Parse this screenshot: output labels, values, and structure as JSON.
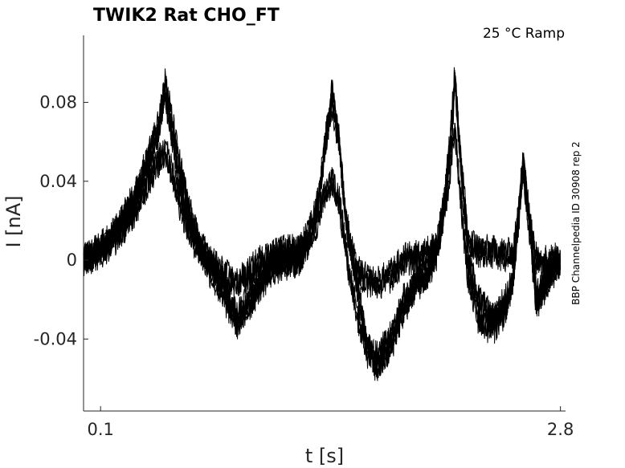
{
  "chart_data": {
    "type": "line",
    "title": "TWIK2  Rat  CHO_FT",
    "annotation": "25 °C  Ramp",
    "side_label": "BBP Channelpedia ID 30908 rep 2",
    "xlabel": "t [s]",
    "ylabel": "I [nA]",
    "xlim": [
      0.0,
      2.83
    ],
    "ylim": [
      -0.0765,
      0.114
    ],
    "x_ticks": [
      {
        "value": 0.1,
        "label": "0.1"
      },
      {
        "value": 2.8,
        "label": "2.8"
      }
    ],
    "y_ticks": [
      {
        "value": 0.08,
        "label": "0.08"
      },
      {
        "value": 0.04,
        "label": "0.04"
      },
      {
        "value": 0,
        "label": "0"
      },
      {
        "value": -0.04,
        "label": "-0.04"
      }
    ],
    "grid": false,
    "legend": "none",
    "series_color": "#000000",
    "series": [
      {
        "x": [
          0.0,
          0.1,
          0.2,
          0.3,
          0.38,
          0.44,
          0.48,
          0.52,
          0.56,
          0.62,
          0.68,
          0.74,
          0.8,
          0.86,
          0.9,
          0.96,
          1.04,
          1.12,
          1.2,
          1.26,
          1.32,
          1.38,
          1.42,
          1.46,
          1.5,
          1.54,
          1.6,
          1.66,
          1.72,
          1.8,
          1.88,
          1.96,
          2.02,
          2.08,
          2.12,
          2.16,
          2.18,
          2.22,
          2.26,
          2.32,
          2.4,
          2.48,
          2.52,
          2.55,
          2.58,
          2.62,
          2.66,
          2.7,
          2.75,
          2.8
        ],
        "y": [
          0.0,
          0.005,
          0.015,
          0.03,
          0.05,
          0.065,
          0.085,
          0.06,
          0.04,
          0.02,
          0.008,
          0.0,
          -0.01,
          -0.02,
          -0.03,
          -0.02,
          -0.01,
          0.0,
          0.0,
          0.0,
          0.01,
          0.03,
          0.06,
          0.085,
          0.06,
          0.02,
          -0.01,
          -0.04,
          -0.05,
          -0.04,
          -0.02,
          -0.01,
          -0.005,
          0.01,
          0.03,
          0.07,
          0.095,
          0.04,
          0.0,
          -0.02,
          -0.03,
          -0.02,
          -0.01,
          0.02,
          0.05,
          0.02,
          -0.02,
          -0.01,
          -0.005,
          0.0
        ]
      },
      {
        "x": [
          0.0,
          0.1,
          0.2,
          0.3,
          0.38,
          0.44,
          0.48,
          0.52,
          0.56,
          0.62,
          0.68,
          0.74,
          0.8,
          0.86,
          0.9,
          0.96,
          1.04,
          1.12,
          1.2,
          1.26,
          1.32,
          1.38,
          1.42,
          1.46,
          1.5,
          1.54,
          1.6,
          1.66,
          1.72,
          1.8,
          1.88,
          1.96,
          2.02,
          2.08,
          2.12,
          2.16,
          2.18,
          2.22,
          2.26,
          2.32,
          2.4,
          2.48,
          2.52,
          2.55,
          2.58,
          2.62,
          2.66,
          2.7,
          2.75,
          2.8
        ],
        "y": [
          0.0,
          0.006,
          0.016,
          0.032,
          0.052,
          0.07,
          0.09,
          0.07,
          0.05,
          0.025,
          0.008,
          0.0,
          -0.005,
          -0.01,
          -0.012,
          -0.008,
          0.0,
          0.003,
          0.005,
          0.005,
          0.012,
          0.03,
          0.06,
          0.08,
          0.06,
          0.02,
          -0.005,
          -0.01,
          -0.012,
          -0.008,
          0.0,
          0.002,
          0.004,
          0.008,
          0.03,
          0.06,
          0.09,
          0.045,
          0.01,
          0.005,
          0.004,
          0.003,
          0.002,
          0.02,
          0.05,
          0.02,
          0.0,
          0.0,
          0.0,
          0.0
        ]
      },
      {
        "x": [
          0.0,
          0.1,
          0.2,
          0.3,
          0.38,
          0.44,
          0.48,
          0.52,
          0.56,
          0.62,
          0.68,
          0.74,
          0.8,
          0.86,
          0.9,
          0.96,
          1.04,
          1.12,
          1.2,
          1.26,
          1.32,
          1.38,
          1.42,
          1.46,
          1.5,
          1.54,
          1.6,
          1.66,
          1.72,
          1.8,
          1.88,
          1.96,
          2.02,
          2.08,
          2.12,
          2.16,
          2.18,
          2.22,
          2.26,
          2.32,
          2.4,
          2.48,
          2.52,
          2.55,
          2.58,
          2.62,
          2.66,
          2.7,
          2.75,
          2.8
        ],
        "y": [
          0.0,
          0.004,
          0.012,
          0.025,
          0.04,
          0.05,
          0.055,
          0.045,
          0.03,
          0.015,
          0.005,
          -0.005,
          -0.015,
          -0.025,
          -0.032,
          -0.025,
          -0.012,
          -0.004,
          -0.002,
          0.0,
          0.008,
          0.022,
          0.035,
          0.04,
          0.03,
          0.005,
          -0.025,
          -0.045,
          -0.055,
          -0.045,
          -0.025,
          -0.012,
          -0.008,
          0.005,
          0.025,
          0.05,
          0.065,
          0.025,
          -0.01,
          -0.03,
          -0.035,
          -0.025,
          -0.012,
          0.015,
          0.045,
          0.015,
          -0.025,
          -0.015,
          -0.008,
          0.0
        ]
      }
    ]
  }
}
